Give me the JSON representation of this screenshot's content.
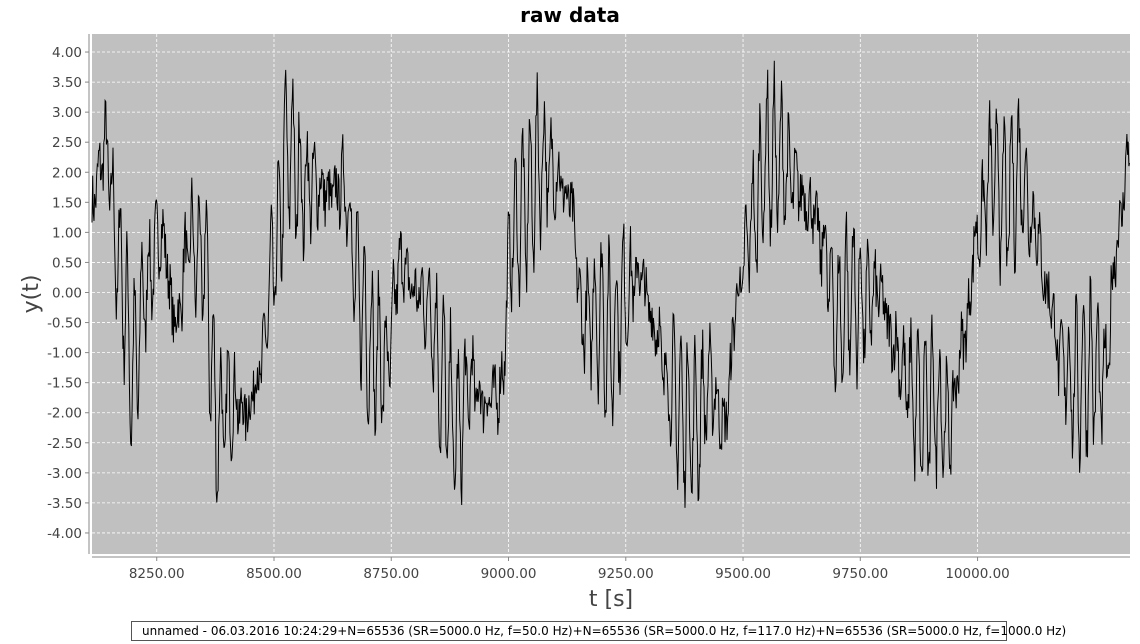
{
  "chart_data": {
    "type": "line",
    "title": "raw data",
    "xlabel": "t [s]",
    "ylabel": "y(t)",
    "xlim": [
      8112,
      10325
    ],
    "ylim": [
      -4.35,
      4.3
    ],
    "xticks": [
      8250,
      8500,
      8750,
      9000,
      9250,
      9500,
      9750,
      10000
    ],
    "xtick_labels": [
      "8250.00",
      "8500.00",
      "8750.00",
      "9000.00",
      "9250.00",
      "9500.00",
      "9750.00",
      "10000.00"
    ],
    "yticks": [
      4,
      3.5,
      3,
      2.5,
      2,
      1.5,
      1,
      0.5,
      0,
      -0.5,
      -1,
      -1.5,
      -2,
      -2.5,
      -3,
      -3.5,
      -4
    ],
    "ytick_labels": [
      "4.00",
      "3.50",
      "3.00",
      "2.50",
      "2.00",
      "1.50",
      "1.00",
      "0.50",
      "0.00",
      "-0.50",
      "-1.00",
      "-1.50",
      "-2.00",
      "-2.50",
      "-3.00",
      "-3.50",
      "-4.00"
    ],
    "grid": true,
    "legend_position": "bottom",
    "series": [
      {
        "name": "unnamed - 06.03.2016 10:24:29+N=65536 (SR=5000.0 Hz, f=50.0 Hz)+N=65536 (SR=5000.0 Hz, f=117.0 Hz)+N=65536 (SR=5000.0 Hz, f=1000.0 Hz)",
        "color": "#000000",
        "envelope": {
          "x": [
            8112,
            8140,
            8170,
            8200,
            8230,
            8260,
            8290,
            8320,
            8350,
            8380,
            8410,
            8440,
            8470,
            8500,
            8530,
            8560,
            8590,
            8620,
            8650,
            8680,
            8710,
            8740,
            8770,
            8800,
            8830,
            8860,
            8890,
            8920,
            8950,
            8980,
            9010,
            9040,
            9070,
            9100,
            9130,
            9160,
            9190,
            9220,
            9250,
            9280,
            9310,
            9340,
            9370,
            9400,
            9430,
            9460,
            9490,
            9520,
            9550,
            9580,
            9610,
            9640,
            9670,
            9700,
            9730,
            9760,
            9790,
            9820,
            9850,
            9880,
            9910,
            9940,
            9970,
            10000,
            10030,
            10060,
            10090,
            10120,
            10150,
            10180,
            10210,
            10240,
            10270,
            10300,
            10325
          ],
          "y": [
            1.5,
            2.4,
            0.5,
            -1.3,
            0.2,
            1.0,
            -0.5,
            0.8,
            0.5,
            -2.2,
            -1.8,
            -2.0,
            -1.3,
            0.5,
            2.4,
            1.8,
            1.8,
            1.6,
            1.8,
            0.0,
            -1.0,
            -1.2,
            0.5,
            0.0,
            -0.2,
            -1.5,
            -2.3,
            -1.5,
            -1.8,
            -1.7,
            1.0,
            1.5,
            2.2,
            2.0,
            1.5,
            -0.5,
            -0.3,
            -0.8,
            0.0,
            0.3,
            -0.5,
            -1.5,
            -2.0,
            -2.2,
            -1.5,
            -2.2,
            0.0,
            1.2,
            2.2,
            2.2,
            1.8,
            1.5,
            0.8,
            -0.5,
            0.0,
            -0.2,
            0.0,
            -0.8,
            -1.5,
            -2.0,
            -1.8,
            -2.2,
            -0.8,
            1.0,
            2.0,
            1.5,
            2.0,
            1.2,
            0.0,
            -1.2,
            -1.5,
            -1.2,
            -1.5,
            1.0,
            2.5
          ]
        },
        "amplitude": 1.3
      }
    ]
  }
}
